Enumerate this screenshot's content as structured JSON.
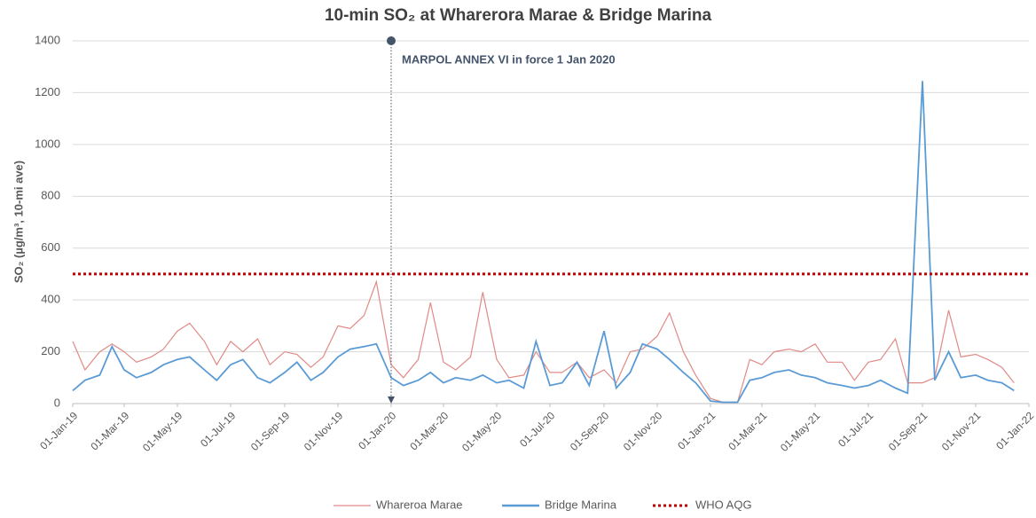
{
  "chart_data": {
    "type": "line",
    "title": "10-min SO₂ at Wharerora Marae & Bridge Marina",
    "y_label": "SO₂ (µg/m³, 10-mi ave)",
    "x": [
      "2019-01-01",
      "2019-01-15",
      "2019-02-01",
      "2019-02-15",
      "2019-03-01",
      "2019-03-15",
      "2019-04-01",
      "2019-04-15",
      "2019-05-01",
      "2019-05-15",
      "2019-06-01",
      "2019-06-15",
      "2019-07-01",
      "2019-07-15",
      "2019-08-01",
      "2019-08-15",
      "2019-09-01",
      "2019-09-15",
      "2019-10-01",
      "2019-10-15",
      "2019-11-01",
      "2019-11-15",
      "2019-12-01",
      "2019-12-15",
      "2020-01-01",
      "2020-01-15",
      "2020-02-01",
      "2020-02-15",
      "2020-03-01",
      "2020-03-15",
      "2020-04-01",
      "2020-04-15",
      "2020-05-01",
      "2020-05-15",
      "2020-06-01",
      "2020-06-15",
      "2020-07-01",
      "2020-07-15",
      "2020-08-01",
      "2020-08-15",
      "2020-09-01",
      "2020-09-15",
      "2020-10-01",
      "2020-10-15",
      "2020-11-01",
      "2020-11-15",
      "2020-12-01",
      "2020-12-15",
      "2021-01-01",
      "2021-01-15",
      "2021-02-01",
      "2021-02-15",
      "2021-03-01",
      "2021-03-15",
      "2021-04-01",
      "2021-04-15",
      "2021-05-01",
      "2021-05-15",
      "2021-06-01",
      "2021-06-15",
      "2021-07-01",
      "2021-07-15",
      "2021-08-01",
      "2021-08-15",
      "2021-09-01",
      "2021-09-15",
      "2021-10-01",
      "2021-10-15",
      "2021-11-01",
      "2021-11-15",
      "2021-12-01",
      "2021-12-15"
    ],
    "series": [
      {
        "name": "Whareroa Marae",
        "color": "#e08a86",
        "values": [
          240,
          130,
          200,
          230,
          200,
          160,
          180,
          210,
          280,
          310,
          240,
          150,
          240,
          200,
          250,
          150,
          200,
          190,
          140,
          180,
          300,
          290,
          340,
          470,
          150,
          100,
          170,
          390,
          160,
          130,
          180,
          430,
          170,
          100,
          110,
          200,
          120,
          120,
          160,
          100,
          130,
          80,
          200,
          210,
          260,
          350,
          200,
          110,
          20,
          5,
          5,
          170,
          150,
          200,
          210,
          200,
          230,
          160,
          160,
          90,
          160,
          170,
          250,
          80,
          80,
          100,
          360,
          180,
          190,
          170,
          140,
          80
        ]
      },
      {
        "name": "Bridge Marina",
        "color": "#5b9bd5",
        "values": [
          50,
          90,
          110,
          220,
          130,
          100,
          120,
          150,
          170,
          180,
          130,
          90,
          150,
          170,
          100,
          80,
          120,
          160,
          90,
          120,
          180,
          210,
          220,
          230,
          100,
          70,
          90,
          120,
          80,
          100,
          90,
          110,
          80,
          90,
          60,
          240,
          70,
          80,
          160,
          70,
          280,
          60,
          120,
          230,
          210,
          170,
          120,
          80,
          10,
          5,
          5,
          90,
          100,
          120,
          130,
          110,
          100,
          80,
          70,
          60,
          70,
          90,
          60,
          40,
          1245,
          90,
          200,
          100,
          110,
          90,
          80,
          50
        ]
      }
    ],
    "who_aqg": {
      "name": "WHO AQG",
      "value": 500,
      "color": "#c00000"
    },
    "annotation": {
      "text": "MARPOL ANNEX VI in force 1 Jan 2020",
      "x": "2020-01-01",
      "color": "#44546a"
    },
    "xlim": [
      "2019-01-01",
      "2022-01-01"
    ],
    "xticks": [
      {
        "value": "2019-01-01",
        "label": "01-Jan-19"
      },
      {
        "value": "2019-03-01",
        "label": "01-Mar-19"
      },
      {
        "value": "2019-05-01",
        "label": "01-May-19"
      },
      {
        "value": "2019-07-01",
        "label": "01-Jul-19"
      },
      {
        "value": "2019-09-01",
        "label": "01-Sep-19"
      },
      {
        "value": "2019-11-01",
        "label": "01-Nov-19"
      },
      {
        "value": "2020-01-01",
        "label": "01-Jan-20"
      },
      {
        "value": "2020-03-01",
        "label": "01-Mar-20"
      },
      {
        "value": "2020-05-01",
        "label": "01-May-20"
      },
      {
        "value": "2020-07-01",
        "label": "01-Jul-20"
      },
      {
        "value": "2020-09-01",
        "label": "01-Sep-20"
      },
      {
        "value": "2020-11-01",
        "label": "01-Nov-20"
      },
      {
        "value": "2021-01-01",
        "label": "01-Jan-21"
      },
      {
        "value": "2021-03-01",
        "label": "01-Mar-21"
      },
      {
        "value": "2021-05-01",
        "label": "01-May-21"
      },
      {
        "value": "2021-07-01",
        "label": "01-Jul-21"
      },
      {
        "value": "2021-09-01",
        "label": "01-Sep-21"
      },
      {
        "value": "2021-11-01",
        "label": "01-Nov-21"
      },
      {
        "value": "2022-01-01",
        "label": "01-Jan-22"
      }
    ],
    "ylim": [
      0,
      1400
    ],
    "yticks": [
      0,
      200,
      400,
      600,
      800,
      1000,
      1200,
      1400
    ],
    "grid": true
  }
}
